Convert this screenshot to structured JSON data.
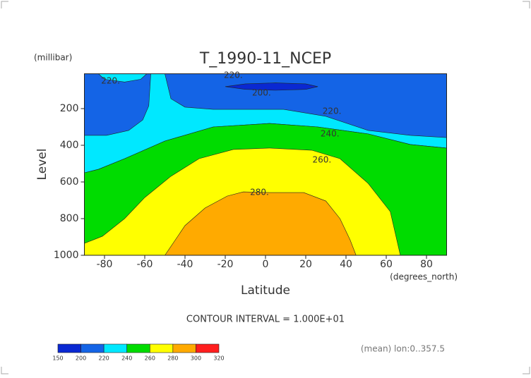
{
  "chart_data": {
    "type": "contour",
    "title": "T_1990-11_NCEP",
    "y_unit": "(millibar)",
    "ylabel": "Level",
    "xlabel": "Latitude",
    "x_unit": "(degrees_north)",
    "note": "CONTOUR INTERVAL = 1.000E+01",
    "footer": "(mean) lon:0..357.5",
    "xlim": [
      -90,
      90
    ],
    "ylim": [
      1000,
      10
    ],
    "xticks": [
      -80,
      -60,
      -40,
      -20,
      0,
      20,
      40,
      60,
      80
    ],
    "yticks": [
      200,
      400,
      600,
      800,
      1000
    ],
    "regions": [
      {
        "color": "#00e8ff",
        "lat": [
          -90,
          90,
          90,
          72,
          51,
          26,
          2,
          -26,
          -50,
          -70,
          -83,
          -90
        ],
        "p": [
          10,
          10,
          415,
          396,
          338,
          300,
          281,
          300,
          377,
          473,
          531,
          550
        ]
      },
      {
        "color": "#00dc00",
        "lat": [
          -90,
          -83,
          -70,
          -50,
          -26,
          2,
          26,
          51,
          72,
          90,
          90,
          -90
        ],
        "p": [
          550,
          531,
          473,
          377,
          300,
          281,
          300,
          338,
          396,
          415,
          1000,
          1000
        ]
      },
      {
        "color": "#ffff00",
        "lat": [
          -90,
          -81,
          -70,
          -60,
          -47,
          -33,
          -16,
          2,
          23,
          37,
          51,
          62,
          67,
          -90
        ],
        "p": [
          935,
          896,
          800,
          685,
          569,
          473,
          423,
          415,
          427,
          473,
          608,
          762,
          1000,
          1000
        ]
      },
      {
        "color": "#ffaa00",
        "lat": [
          -50,
          -40,
          -30,
          -19,
          -11,
          2,
          19,
          30,
          37,
          42,
          45
        ],
        "p": [
          1000,
          838,
          742,
          677,
          654,
          658,
          658,
          704,
          800,
          915,
          1000
        ]
      },
      {
        "color": "#1464e6",
        "lat": [
          -90,
          -83,
          -80,
          -70,
          -62,
          -59,
          -57,
          -58,
          -61,
          -68,
          -79,
          -90
        ],
        "p": [
          10,
          10,
          40,
          55,
          40,
          10,
          10,
          185,
          262,
          319,
          346,
          346
        ]
      },
      {
        "color": "#1464e6",
        "lat": [
          -50,
          90,
          90,
          72,
          51,
          30,
          9,
          -26,
          -40,
          -47
        ],
        "p": [
          10,
          10,
          358,
          346,
          319,
          242,
          204,
          204,
          192,
          146
        ]
      },
      {
        "color": "#0a28d2",
        "lat": [
          -20,
          -10,
          5,
          20,
          26,
          20,
          5,
          -10
        ],
        "p": [
          80,
          65,
          60,
          65,
          80,
          95,
          100,
          95
        ]
      }
    ],
    "contour_labels": [
      {
        "value": 220,
        "label": "220.",
        "lat": -77,
        "p": 50
      },
      {
        "value": 220,
        "label": "220.",
        "lat": -16,
        "p": 19
      },
      {
        "value": 200,
        "label": "200.",
        "lat": -2,
        "p": 115
      },
      {
        "value": 220,
        "label": "220.",
        "lat": 33,
        "p": 215
      },
      {
        "value": 240,
        "label": "240.",
        "lat": 32,
        "p": 338
      },
      {
        "value": 260,
        "label": "260.",
        "lat": 28,
        "p": 481
      },
      {
        "value": 280,
        "label": "280.",
        "lat": -3,
        "p": 658
      }
    ],
    "colorbar": {
      "levels": [
        150,
        200,
        220,
        240,
        260,
        280,
        300,
        320
      ],
      "colors": [
        "#0a28d2",
        "#1464e6",
        "#00e8ff",
        "#00dc00",
        "#ffff00",
        "#ffaa00",
        "#ff1e1e"
      ]
    }
  }
}
